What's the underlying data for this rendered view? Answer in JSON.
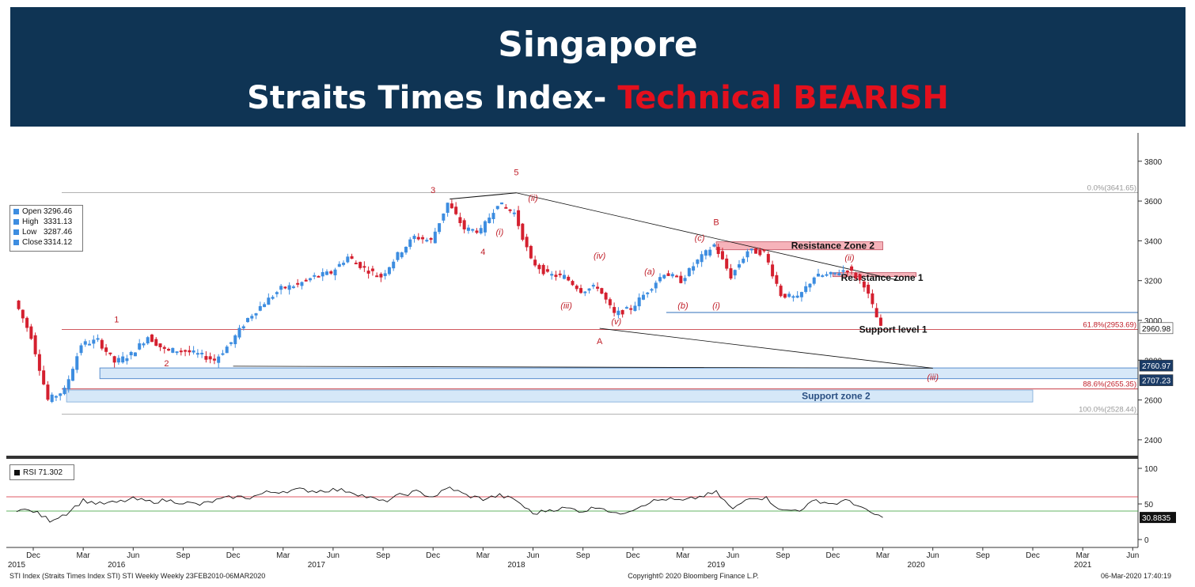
{
  "header": {
    "title": "Singapore",
    "subtitle_prefix": "Straits Times Index- ",
    "subtitle_highlight": "Technical BEARISH",
    "bg_color": "#0f3454",
    "highlight_color": "#e3101d"
  },
  "chart_data": [
    {
      "type": "line",
      "panel": "price",
      "subtype": "weekly candlestick",
      "ylim": [
        2300,
        3950
      ],
      "y_ticks": [
        2400,
        2600,
        2800,
        3000,
        3200,
        3400,
        3600,
        3800
      ],
      "up_color": "#3d8de0",
      "down_color": "#d4202f",
      "legend": {
        "open_label": "Open",
        "open": "3296.46",
        "high_label": "High",
        "high": "3331.13",
        "low_label": "Low",
        "low": "3287.46",
        "close_label": "Close",
        "close": "3314.12"
      },
      "price_path": [
        {
          "x": "2015-11",
          "y": 3100
        },
        {
          "x": "2015-12",
          "y": 2920
        },
        {
          "x": "2016-01",
          "y": 2600
        },
        {
          "x": "2016-02",
          "y": 2650
        },
        {
          "x": "2016-03",
          "y": 2880
        },
        {
          "x": "2016-04",
          "y": 2900
        },
        {
          "x": "2016-05",
          "y": 2790
        },
        {
          "x": "2016-06",
          "y": 2830
        },
        {
          "x": "2016-07",
          "y": 2920
        },
        {
          "x": "2016-08",
          "y": 2850
        },
        {
          "x": "2016-09",
          "y": 2850
        },
        {
          "x": "2016-10",
          "y": 2830
        },
        {
          "x": "2016-11",
          "y": 2800
        },
        {
          "x": "2016-12",
          "y": 2890
        },
        {
          "x": "2017-01",
          "y": 3010
        },
        {
          "x": "2017-02",
          "y": 3090
        },
        {
          "x": "2017-03",
          "y": 3160
        },
        {
          "x": "2017-04",
          "y": 3180
        },
        {
          "x": "2017-05",
          "y": 3220
        },
        {
          "x": "2017-06",
          "y": 3240
        },
        {
          "x": "2017-07",
          "y": 3320
        },
        {
          "x": "2017-08",
          "y": 3260
        },
        {
          "x": "2017-09",
          "y": 3220
        },
        {
          "x": "2017-10",
          "y": 3330
        },
        {
          "x": "2017-11",
          "y": 3420
        },
        {
          "x": "2017-12",
          "y": 3400
        },
        {
          "x": "2018-01",
          "y": 3590
        },
        {
          "x": "2018-02",
          "y": 3460
        },
        {
          "x": "2018-03",
          "y": 3450
        },
        {
          "x": "2018-04",
          "y": 3590
        },
        {
          "x": "2018-05",
          "y": 3540
        },
        {
          "x": "2018-06",
          "y": 3300
        },
        {
          "x": "2018-07",
          "y": 3230
        },
        {
          "x": "2018-08",
          "y": 3220
        },
        {
          "x": "2018-09",
          "y": 3150
        },
        {
          "x": "2018-10",
          "y": 3170
        },
        {
          "x": "2018-11",
          "y": 3030
        },
        {
          "x": "2018-12",
          "y": 3060
        },
        {
          "x": "2019-01",
          "y": 3150
        },
        {
          "x": "2019-02",
          "y": 3240
        },
        {
          "x": "2019-03",
          "y": 3200
        },
        {
          "x": "2019-04",
          "y": 3300
        },
        {
          "x": "2019-05",
          "y": 3380
        },
        {
          "x": "2019-06",
          "y": 3220
        },
        {
          "x": "2019-07",
          "y": 3350
        },
        {
          "x": "2019-08",
          "y": 3340
        },
        {
          "x": "2019-09",
          "y": 3130
        },
        {
          "x": "2019-10",
          "y": 3110
        },
        {
          "x": "2019-11",
          "y": 3220
        },
        {
          "x": "2019-12",
          "y": 3230
        },
        {
          "x": "2020-01",
          "y": 3260
        },
        {
          "x": "2020-02",
          "y": 3180
        },
        {
          "x": "2020-03",
          "y": 2960
        }
      ],
      "fib_levels": [
        {
          "label": "0.0%(3641.65)",
          "value": 3641.65,
          "color": "#999999"
        },
        {
          "label": "61.8%(2953.69)",
          "value": 2953.69,
          "color": "#c0202a"
        },
        {
          "label": "88.6%(2655.35)",
          "value": 2655.35,
          "color": "#c0202a"
        },
        {
          "label": "100.0%(2528.44)",
          "value": 2528.44,
          "color": "#999999"
        }
      ],
      "zones": [
        {
          "label": "Resistance Zone 2",
          "from": "2019-05",
          "to": "2020-03",
          "low": 3355,
          "high": 3395,
          "color": "#f4a6ae"
        },
        {
          "label": "Resistance zone 1",
          "from": "2019-12",
          "to": "2020-05",
          "low": 3220,
          "high": 3240,
          "color": "#f4a6ae"
        },
        {
          "label": "Support zone 2",
          "from": "2016-02",
          "to": "2020-12",
          "low": 2590,
          "high": 2650,
          "color": "#cfe4f7"
        }
      ],
      "support_level_label": "Support level 1",
      "support_band": {
        "from": "2016-04",
        "to": "2021-06",
        "low": 2707.23,
        "high": 2760.97
      },
      "horizontal_level": {
        "from": "2019-02",
        "to": "2021-06",
        "value": 3040
      },
      "axis_tags": [
        {
          "text": "2960.98",
          "value": 2960.98
        },
        {
          "text": "2760.97",
          "value": 2760.97
        },
        {
          "text": "2707.23",
          "value": 2707.23
        }
      ],
      "wave_labels": [
        {
          "text": "1",
          "x": "2016-05",
          "y": 2990,
          "italic": false
        },
        {
          "text": "2",
          "x": "2016-08",
          "y": 2770,
          "italic": false
        },
        {
          "text": "3",
          "x": "2017-12",
          "y": 3640,
          "italic": false
        },
        {
          "text": "4",
          "x": "2018-03",
          "y": 3330,
          "italic": false
        },
        {
          "text": "5",
          "x": "2018-05",
          "y": 3730,
          "italic": false
        },
        {
          "text": "(i)",
          "x": "2018-04",
          "y": 3430,
          "italic": true
        },
        {
          "text": "(ii)",
          "x": "2018-06",
          "y": 3600,
          "italic": true
        },
        {
          "text": "(iii)",
          "x": "2018-08",
          "y": 3060,
          "italic": true
        },
        {
          "text": "(iv)",
          "x": "2018-10",
          "y": 3310,
          "italic": true
        },
        {
          "text": "(v)",
          "x": "2018-11",
          "y": 2980,
          "italic": true
        },
        {
          "text": "A",
          "x": "2018-10",
          "y": 2880,
          "italic": false
        },
        {
          "text": "(a)",
          "x": "2019-01",
          "y": 3230,
          "italic": true
        },
        {
          "text": "(b)",
          "x": "2019-03",
          "y": 3060,
          "italic": true
        },
        {
          "text": "(c)",
          "x": "2019-04",
          "y": 3400,
          "italic": true
        },
        {
          "text": "B",
          "x": "2019-05",
          "y": 3480,
          "italic": false
        },
        {
          "text": "(i)",
          "x": "2019-05",
          "y": 3060,
          "italic": true
        },
        {
          "text": "(ii)",
          "x": "2020-01",
          "y": 3300,
          "italic": true
        },
        {
          "text": "(iii)",
          "x": "2020-06",
          "y": 2700,
          "italic": true
        }
      ]
    },
    {
      "type": "line",
      "panel": "rsi",
      "legend": {
        "label": "RSI",
        "value": "71.302"
      },
      "ylim": [
        0,
        100
      ],
      "y_ticks": [
        0,
        50,
        100
      ],
      "overbought": 60,
      "oversold": 40,
      "last_value_tag": "30.8835",
      "rsi_path": [
        {
          "x": "2015-11",
          "y": 42
        },
        {
          "x": "2015-12",
          "y": 40
        },
        {
          "x": "2016-01",
          "y": 27
        },
        {
          "x": "2016-02",
          "y": 37
        },
        {
          "x": "2016-03",
          "y": 55
        },
        {
          "x": "2016-04",
          "y": 50
        },
        {
          "x": "2016-05",
          "y": 52
        },
        {
          "x": "2016-06",
          "y": 57
        },
        {
          "x": "2016-07",
          "y": 53
        },
        {
          "x": "2016-08",
          "y": 55
        },
        {
          "x": "2016-09",
          "y": 52
        },
        {
          "x": "2016-10",
          "y": 49
        },
        {
          "x": "2016-11",
          "y": 55
        },
        {
          "x": "2016-12",
          "y": 60
        },
        {
          "x": "2017-01",
          "y": 59
        },
        {
          "x": "2017-02",
          "y": 66
        },
        {
          "x": "2017-03",
          "y": 68
        },
        {
          "x": "2017-04",
          "y": 70
        },
        {
          "x": "2017-05",
          "y": 68
        },
        {
          "x": "2017-06",
          "y": 70
        },
        {
          "x": "2017-07",
          "y": 68
        },
        {
          "x": "2017-08",
          "y": 60
        },
        {
          "x": "2017-09",
          "y": 53
        },
        {
          "x": "2017-10",
          "y": 62
        },
        {
          "x": "2017-11",
          "y": 67
        },
        {
          "x": "2017-12",
          "y": 60
        },
        {
          "x": "2018-01",
          "y": 73
        },
        {
          "x": "2018-02",
          "y": 62
        },
        {
          "x": "2018-03",
          "y": 57
        },
        {
          "x": "2018-04",
          "y": 62
        },
        {
          "x": "2018-05",
          "y": 55
        },
        {
          "x": "2018-06",
          "y": 36
        },
        {
          "x": "2018-07",
          "y": 42
        },
        {
          "x": "2018-08",
          "y": 44
        },
        {
          "x": "2018-09",
          "y": 40
        },
        {
          "x": "2018-10",
          "y": 47
        },
        {
          "x": "2018-11",
          "y": 35
        },
        {
          "x": "2018-12",
          "y": 43
        },
        {
          "x": "2019-01",
          "y": 53
        },
        {
          "x": "2019-02",
          "y": 57
        },
        {
          "x": "2019-03",
          "y": 54
        },
        {
          "x": "2019-04",
          "y": 60
        },
        {
          "x": "2019-05",
          "y": 66
        },
        {
          "x": "2019-06",
          "y": 42
        },
        {
          "x": "2019-07",
          "y": 60
        },
        {
          "x": "2019-08",
          "y": 58
        },
        {
          "x": "2019-09",
          "y": 40
        },
        {
          "x": "2019-10",
          "y": 42
        },
        {
          "x": "2019-11",
          "y": 55
        },
        {
          "x": "2019-12",
          "y": 50
        },
        {
          "x": "2020-01",
          "y": 55
        },
        {
          "x": "2020-02",
          "y": 40
        },
        {
          "x": "2020-03",
          "y": 31
        }
      ]
    }
  ],
  "x_axis": {
    "months": [
      {
        "label": "Dec",
        "x": "2015-12"
      },
      {
        "label": "Mar",
        "x": "2016-03"
      },
      {
        "label": "Jun",
        "x": "2016-06"
      },
      {
        "label": "Sep",
        "x": "2016-09"
      },
      {
        "label": "Dec",
        "x": "2016-12"
      },
      {
        "label": "Mar",
        "x": "2017-03"
      },
      {
        "label": "Jun",
        "x": "2017-06"
      },
      {
        "label": "Sep",
        "x": "2017-09"
      },
      {
        "label": "Dec",
        "x": "2017-12"
      },
      {
        "label": "Mar",
        "x": "2018-03"
      },
      {
        "label": "Jun",
        "x": "2018-06"
      },
      {
        "label": "Sep",
        "x": "2018-09"
      },
      {
        "label": "Dec",
        "x": "2018-12"
      },
      {
        "label": "Mar",
        "x": "2019-03"
      },
      {
        "label": "Jun",
        "x": "2019-06"
      },
      {
        "label": "Sep",
        "x": "2019-09"
      },
      {
        "label": "Dec",
        "x": "2019-12"
      },
      {
        "label": "Mar",
        "x": "2020-03"
      },
      {
        "label": "Jun",
        "x": "2020-06"
      },
      {
        "label": "Sep",
        "x": "2020-09"
      },
      {
        "label": "Dec",
        "x": "2020-12"
      },
      {
        "label": "Mar",
        "x": "2021-03"
      },
      {
        "label": "Jun",
        "x": "2021-06"
      }
    ],
    "years": [
      {
        "label": "2015",
        "x": "2015-11"
      },
      {
        "label": "2016",
        "x": "2016-05"
      },
      {
        "label": "2017",
        "x": "2017-05"
      },
      {
        "label": "2018",
        "x": "2018-05"
      },
      {
        "label": "2019",
        "x": "2019-05"
      },
      {
        "label": "2020",
        "x": "2020-05"
      },
      {
        "label": "2021",
        "x": "2021-03"
      }
    ]
  },
  "footer": {
    "left": "STI Index  (Straits Times Index STI)  STI Weekly  Weekly 23FEB2010-06MAR2020",
    "center": "Copyright© 2020 Bloomberg Finance L.P.",
    "right": "06-Mar-2020 17:40:19"
  }
}
